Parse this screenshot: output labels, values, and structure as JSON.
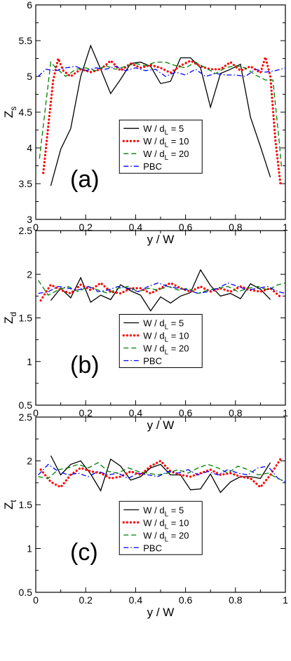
{
  "chart_data": [
    {
      "type": "line",
      "panel_label": "(a)",
      "xlabel": "y / W",
      "ylabel": "Z",
      "ylabel_sub": "s",
      "xlim": [
        0,
        1
      ],
      "ylim": [
        3,
        6
      ],
      "xticks": [
        "0",
        "0.2",
        "0.4",
        "0.6",
        "0.8",
        "1"
      ],
      "yticks": [
        "3",
        "3.5",
        "4",
        "4.5",
        "5",
        "5.5",
        "6"
      ],
      "legend": {
        "position": "lower-center"
      },
      "series": [
        {
          "name": "W / d_L = 5",
          "label_pre": "W / d",
          "label_sub": "L",
          "label_post": " = 5",
          "color": "#000000",
          "style": "solid",
          "x": [
            0.06,
            0.1,
            0.14,
            0.18,
            0.22,
            0.26,
            0.3,
            0.34,
            0.38,
            0.42,
            0.46,
            0.5,
            0.54,
            0.58,
            0.62,
            0.66,
            0.7,
            0.74,
            0.78,
            0.82,
            0.86,
            0.9,
            0.94
          ],
          "y": [
            3.47,
            3.98,
            4.27,
            5.0,
            5.43,
            5.1,
            4.76,
            4.96,
            5.18,
            5.2,
            5.14,
            4.9,
            4.93,
            5.26,
            5.26,
            5.12,
            4.57,
            5.04,
            5.1,
            5.17,
            4.43,
            4.02,
            3.59
          ]
        },
        {
          "name": "W / d_L = 10",
          "label_pre": "W / d",
          "label_sub": "L",
          "label_post": " = 10",
          "color": "#ff0000",
          "style": "dotted",
          "x": [
            0.03,
            0.05,
            0.07,
            0.09,
            0.11,
            0.14,
            0.18,
            0.22,
            0.26,
            0.3,
            0.34,
            0.38,
            0.42,
            0.46,
            0.5,
            0.54,
            0.58,
            0.62,
            0.66,
            0.7,
            0.74,
            0.78,
            0.82,
            0.86,
            0.9,
            0.92,
            0.94,
            0.96,
            0.98
          ],
          "y": [
            3.65,
            4.3,
            4.95,
            5.25,
            5.08,
            5.0,
            5.1,
            5.06,
            5.1,
            5.22,
            5.08,
            5.18,
            5.12,
            5.16,
            5.12,
            5.05,
            5.15,
            5.22,
            5.14,
            5.1,
            5.1,
            5.2,
            5.08,
            5.14,
            5.05,
            5.27,
            5.0,
            4.1,
            3.5
          ]
        },
        {
          "name": "W / d_L = 20",
          "label_pre": "W / d",
          "label_sub": "L",
          "label_post": " = 20",
          "color": "#008000",
          "style": "dashed",
          "x": [
            0.015,
            0.04,
            0.06,
            0.08,
            0.12,
            0.16,
            0.2,
            0.24,
            0.28,
            0.32,
            0.36,
            0.4,
            0.44,
            0.48,
            0.52,
            0.56,
            0.6,
            0.64,
            0.68,
            0.72,
            0.76,
            0.8,
            0.84,
            0.88,
            0.92,
            0.95,
            0.975,
            0.985
          ],
          "y": [
            3.85,
            4.6,
            5.2,
            5.12,
            5.0,
            5.1,
            5.12,
            5.08,
            5.15,
            5.1,
            5.14,
            5.18,
            5.15,
            5.2,
            5.2,
            5.15,
            5.12,
            5.2,
            5.12,
            5.04,
            5.12,
            5.15,
            5.12,
            5.02,
            4.95,
            4.95,
            4.1,
            3.7
          ]
        },
        {
          "name": "PBC",
          "label_pre": "PBC",
          "label_sub": "",
          "label_post": "",
          "color": "#0000ff",
          "style": "dashdot",
          "x": [
            0.01,
            0.04,
            0.08,
            0.12,
            0.16,
            0.2,
            0.24,
            0.28,
            0.32,
            0.36,
            0.4,
            0.44,
            0.48,
            0.52,
            0.56,
            0.6,
            0.64,
            0.68,
            0.72,
            0.76,
            0.8,
            0.84,
            0.88,
            0.92,
            0.96,
            1.0
          ],
          "y": [
            5.0,
            5.1,
            5.08,
            5.12,
            5.14,
            5.08,
            5.12,
            5.1,
            5.14,
            5.08,
            5.12,
            5.08,
            5.1,
            5.0,
            5.06,
            5.02,
            5.1,
            5.0,
            5.04,
            5.02,
            5.02,
            5.0,
            5.1,
            5.06,
            5.08,
            5.12
          ]
        }
      ]
    },
    {
      "type": "line",
      "panel_label": "(b)",
      "xlabel": "y / W",
      "ylabel": "Z",
      "ylabel_sub": "d",
      "xlim": [
        0,
        1
      ],
      "ylim": [
        0.5,
        2.5
      ],
      "xticks": [
        "0",
        "0.2",
        "0.4",
        "0.6",
        "0.8",
        "1"
      ],
      "yticks": [
        "0.5",
        "1",
        "1.5",
        "2",
        "2.5"
      ],
      "legend": {
        "position": "lower-center"
      },
      "series": [
        {
          "name": "W / d_L = 5",
          "label_pre": "W / d",
          "label_sub": "L",
          "label_post": " = 5",
          "color": "#000000",
          "style": "solid",
          "x": [
            0.06,
            0.1,
            0.14,
            0.18,
            0.22,
            0.26,
            0.3,
            0.34,
            0.38,
            0.42,
            0.46,
            0.5,
            0.54,
            0.58,
            0.62,
            0.66,
            0.7,
            0.74,
            0.78,
            0.82,
            0.86,
            0.9,
            0.94
          ],
          "y": [
            1.7,
            1.84,
            1.73,
            1.96,
            1.68,
            1.76,
            1.71,
            1.88,
            1.81,
            1.76,
            1.58,
            1.74,
            1.67,
            1.75,
            1.79,
            2.05,
            1.87,
            1.75,
            1.78,
            1.72,
            1.89,
            1.83,
            1.71
          ]
        },
        {
          "name": "W / d_L = 10",
          "label_pre": "W / d",
          "label_sub": "L",
          "label_post": " = 10",
          "color": "#ff0000",
          "style": "dotted",
          "x": [
            0.02,
            0.06,
            0.1,
            0.14,
            0.18,
            0.22,
            0.26,
            0.3,
            0.34,
            0.38,
            0.42,
            0.46,
            0.5,
            0.54,
            0.58,
            0.62,
            0.66,
            0.7,
            0.74,
            0.78,
            0.82,
            0.86,
            0.9,
            0.94,
            0.98
          ],
          "y": [
            1.7,
            1.88,
            1.82,
            1.78,
            1.88,
            1.82,
            1.9,
            1.8,
            1.78,
            1.84,
            1.84,
            1.78,
            1.84,
            1.9,
            1.84,
            1.8,
            1.86,
            1.8,
            1.84,
            1.8,
            1.86,
            1.82,
            1.8,
            1.84,
            1.74
          ]
        },
        {
          "name": "W / d_L = 20",
          "label_pre": "W / d",
          "label_sub": "L",
          "label_post": " = 20",
          "color": "#008000",
          "style": "dashed",
          "x": [
            0.01,
            0.05,
            0.09,
            0.13,
            0.17,
            0.21,
            0.25,
            0.29,
            0.33,
            0.37,
            0.41,
            0.45,
            0.49,
            0.53,
            0.57,
            0.61,
            0.65,
            0.69,
            0.73,
            0.77,
            0.81,
            0.85,
            0.89,
            0.93,
            0.97,
            1.0
          ],
          "y": [
            1.93,
            1.76,
            1.82,
            1.86,
            1.8,
            1.86,
            1.82,
            1.78,
            1.84,
            1.86,
            1.8,
            1.84,
            1.82,
            1.86,
            1.82,
            1.84,
            1.78,
            1.82,
            1.84,
            1.86,
            1.8,
            1.84,
            1.86,
            1.82,
            1.88,
            1.9
          ]
        },
        {
          "name": "PBC",
          "label_pre": "PBC",
          "label_sub": "",
          "label_post": "",
          "color": "#0000ff",
          "style": "dashdot",
          "x": [
            0.01,
            0.05,
            0.09,
            0.13,
            0.17,
            0.21,
            0.25,
            0.29,
            0.33,
            0.37,
            0.41,
            0.45,
            0.49,
            0.53,
            0.57,
            0.61,
            0.65,
            0.69,
            0.73,
            0.77,
            0.81,
            0.85,
            0.89,
            0.93,
            0.97,
            1.0
          ],
          "y": [
            1.78,
            1.8,
            1.86,
            1.84,
            1.82,
            1.86,
            1.8,
            1.82,
            1.86,
            1.84,
            1.8,
            1.86,
            1.9,
            1.86,
            1.84,
            1.82,
            1.78,
            1.8,
            1.84,
            1.9,
            1.86,
            1.82,
            1.84,
            1.86,
            1.8,
            1.78
          ]
        }
      ]
    },
    {
      "type": "line",
      "panel_label": "(c)",
      "xlabel": "y / W",
      "ylabel": "Z",
      "ylabel_sub": "t",
      "xlim": [
        0,
        1
      ],
      "ylim": [
        0.5,
        2.5
      ],
      "xticks": [
        "0",
        "0.2",
        "0.4",
        "0.6",
        "0.8",
        "1"
      ],
      "yticks": [
        "0.5",
        "1",
        "1.5",
        "2",
        "2.5"
      ],
      "legend": {
        "position": "lower-center"
      },
      "series": [
        {
          "name": "W / d_L = 5",
          "label_pre": "W / d",
          "label_sub": "L",
          "label_post": " = 5",
          "color": "#000000",
          "style": "solid",
          "x": [
            0.06,
            0.1,
            0.14,
            0.18,
            0.22,
            0.26,
            0.3,
            0.34,
            0.38,
            0.42,
            0.46,
            0.5,
            0.54,
            0.58,
            0.62,
            0.66,
            0.7,
            0.74,
            0.78,
            0.82,
            0.86,
            0.9,
            0.94
          ],
          "y": [
            2.06,
            1.84,
            1.96,
            2.0,
            1.85,
            1.66,
            2.02,
            1.94,
            1.78,
            1.82,
            1.92,
            1.96,
            1.84,
            1.84,
            1.67,
            1.68,
            1.85,
            1.64,
            1.76,
            1.82,
            1.82,
            1.8,
            1.98
          ]
        },
        {
          "name": "W / d_L = 10",
          "label_pre": "W / d",
          "label_sub": "L",
          "label_post": " = 10",
          "color": "#ff0000",
          "style": "dotted",
          "x": [
            0.02,
            0.06,
            0.1,
            0.14,
            0.18,
            0.22,
            0.26,
            0.3,
            0.34,
            0.38,
            0.42,
            0.46,
            0.5,
            0.54,
            0.58,
            0.62,
            0.66,
            0.7,
            0.74,
            0.78,
            0.82,
            0.86,
            0.9,
            0.94,
            0.98
          ],
          "y": [
            1.9,
            1.76,
            1.7,
            1.84,
            1.92,
            1.88,
            1.86,
            1.8,
            1.82,
            1.88,
            1.84,
            1.94,
            2.0,
            1.88,
            1.84,
            1.82,
            1.86,
            1.9,
            1.84,
            1.86,
            1.82,
            1.8,
            1.7,
            1.84,
            2.02
          ]
        },
        {
          "name": "W / d_L = 20",
          "label_pre": "W / d",
          "label_sub": "L",
          "label_post": " = 20",
          "color": "#008000",
          "style": "dashed",
          "x": [
            0.01,
            0.05,
            0.09,
            0.13,
            0.17,
            0.21,
            0.25,
            0.29,
            0.33,
            0.37,
            0.41,
            0.45,
            0.49,
            0.53,
            0.57,
            0.61,
            0.65,
            0.69,
            0.73,
            0.77,
            0.81,
            0.85,
            0.89,
            0.93,
            0.97,
            1.0
          ],
          "y": [
            1.82,
            1.8,
            1.9,
            1.92,
            1.96,
            1.92,
            1.98,
            1.88,
            1.86,
            1.92,
            1.88,
            1.86,
            1.84,
            1.86,
            1.9,
            1.86,
            1.92,
            1.96,
            1.92,
            1.86,
            1.94,
            1.9,
            1.84,
            1.86,
            1.8,
            1.76
          ]
        },
        {
          "name": "PBC",
          "label_pre": "PBC",
          "label_sub": "",
          "label_post": "",
          "color": "#0000ff",
          "style": "dashdot",
          "x": [
            0.01,
            0.05,
            0.09,
            0.13,
            0.17,
            0.21,
            0.25,
            0.29,
            0.33,
            0.37,
            0.41,
            0.45,
            0.49,
            0.53,
            0.57,
            0.61,
            0.65,
            0.69,
            0.73,
            0.77,
            0.81,
            0.85,
            0.89,
            0.93,
            0.97,
            1.0
          ],
          "y": [
            1.84,
            1.96,
            1.88,
            1.84,
            1.86,
            1.82,
            1.88,
            1.84,
            1.86,
            1.8,
            1.86,
            1.84,
            1.82,
            1.88,
            1.86,
            1.9,
            1.84,
            1.88,
            1.84,
            1.9,
            1.86,
            1.84,
            1.92,
            1.94,
            1.8,
            1.76
          ]
        }
      ]
    }
  ]
}
